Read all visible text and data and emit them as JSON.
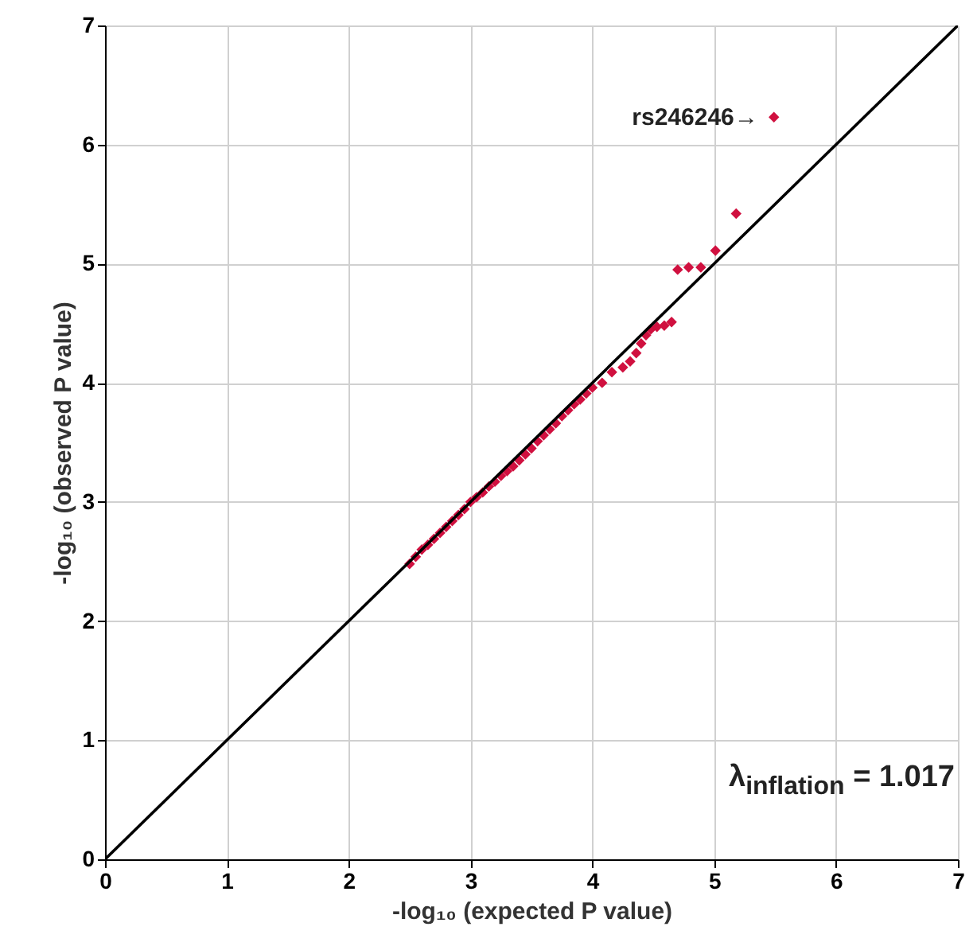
{
  "chart_data": {
    "type": "scatter",
    "xlabel": "-log₁₀ (expected P value)",
    "ylabel": "-log₁₀ (observed P value)",
    "xlim": [
      0,
      7
    ],
    "ylim": [
      0,
      7
    ],
    "xticks": [
      0,
      1,
      2,
      3,
      4,
      5,
      6,
      7
    ],
    "yticks": [
      0,
      1,
      2,
      3,
      4,
      5,
      6,
      7
    ],
    "grid": true,
    "series": [
      {
        "marker": "diamond",
        "color": "#d0103f",
        "x": [
          2.5,
          2.55,
          2.6,
          2.65,
          2.7,
          2.75,
          2.8,
          2.85,
          2.9,
          2.95,
          3.0,
          3.05,
          3.1,
          3.15,
          3.2,
          3.25,
          3.3,
          3.35,
          3.4,
          3.45,
          3.5,
          3.55,
          3.6,
          3.65,
          3.7,
          3.75,
          3.8,
          3.85,
          3.9,
          3.95,
          4.0,
          4.08,
          4.16,
          4.25,
          4.31,
          4.36,
          4.4,
          4.44,
          4.48,
          4.53,
          4.59,
          4.65,
          4.7,
          4.79,
          4.89,
          5.01,
          5.18,
          5.49
        ],
        "values": [
          2.48,
          2.54,
          2.6,
          2.64,
          2.69,
          2.74,
          2.79,
          2.84,
          2.89,
          2.94,
          3.0,
          3.04,
          3.08,
          3.13,
          3.17,
          3.22,
          3.26,
          3.3,
          3.35,
          3.4,
          3.45,
          3.51,
          3.56,
          3.61,
          3.66,
          3.72,
          3.77,
          3.82,
          3.86,
          3.91,
          3.96,
          4.0,
          4.09,
          4.13,
          4.18,
          4.25,
          4.33,
          4.4,
          4.45,
          4.47,
          4.48,
          4.51,
          4.95,
          4.97,
          4.97,
          5.11,
          5.42,
          6.23
        ]
      },
      {
        "type": "line",
        "color": "#000000",
        "x": [
          0,
          7
        ],
        "values": [
          0,
          7
        ]
      }
    ],
    "annotations": [
      {
        "text": "rs246246→",
        "x": 5.49,
        "y": 6.23
      },
      "λ$_{inflation}$ = 1.017"
    ]
  }
}
